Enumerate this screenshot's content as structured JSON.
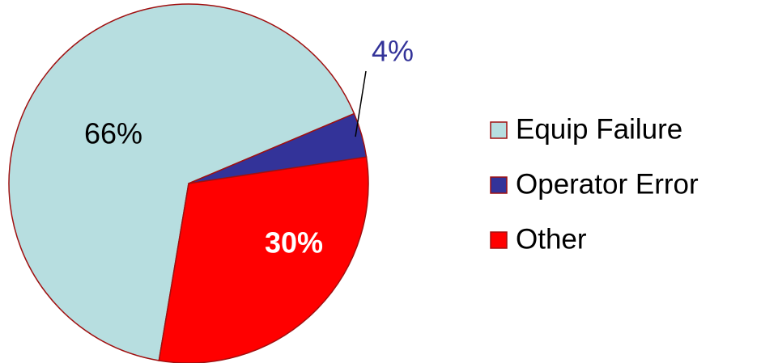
{
  "chart_data": {
    "type": "pie",
    "categories": [
      "Equip Failure",
      "Operator Error",
      "Other"
    ],
    "values": [
      66,
      4,
      30
    ],
    "value_labels": [
      "66%",
      "4%",
      "30%"
    ],
    "colors": [
      "#b7dee0",
      "#333399",
      "#ff0000"
    ],
    "legend": "right"
  }
}
